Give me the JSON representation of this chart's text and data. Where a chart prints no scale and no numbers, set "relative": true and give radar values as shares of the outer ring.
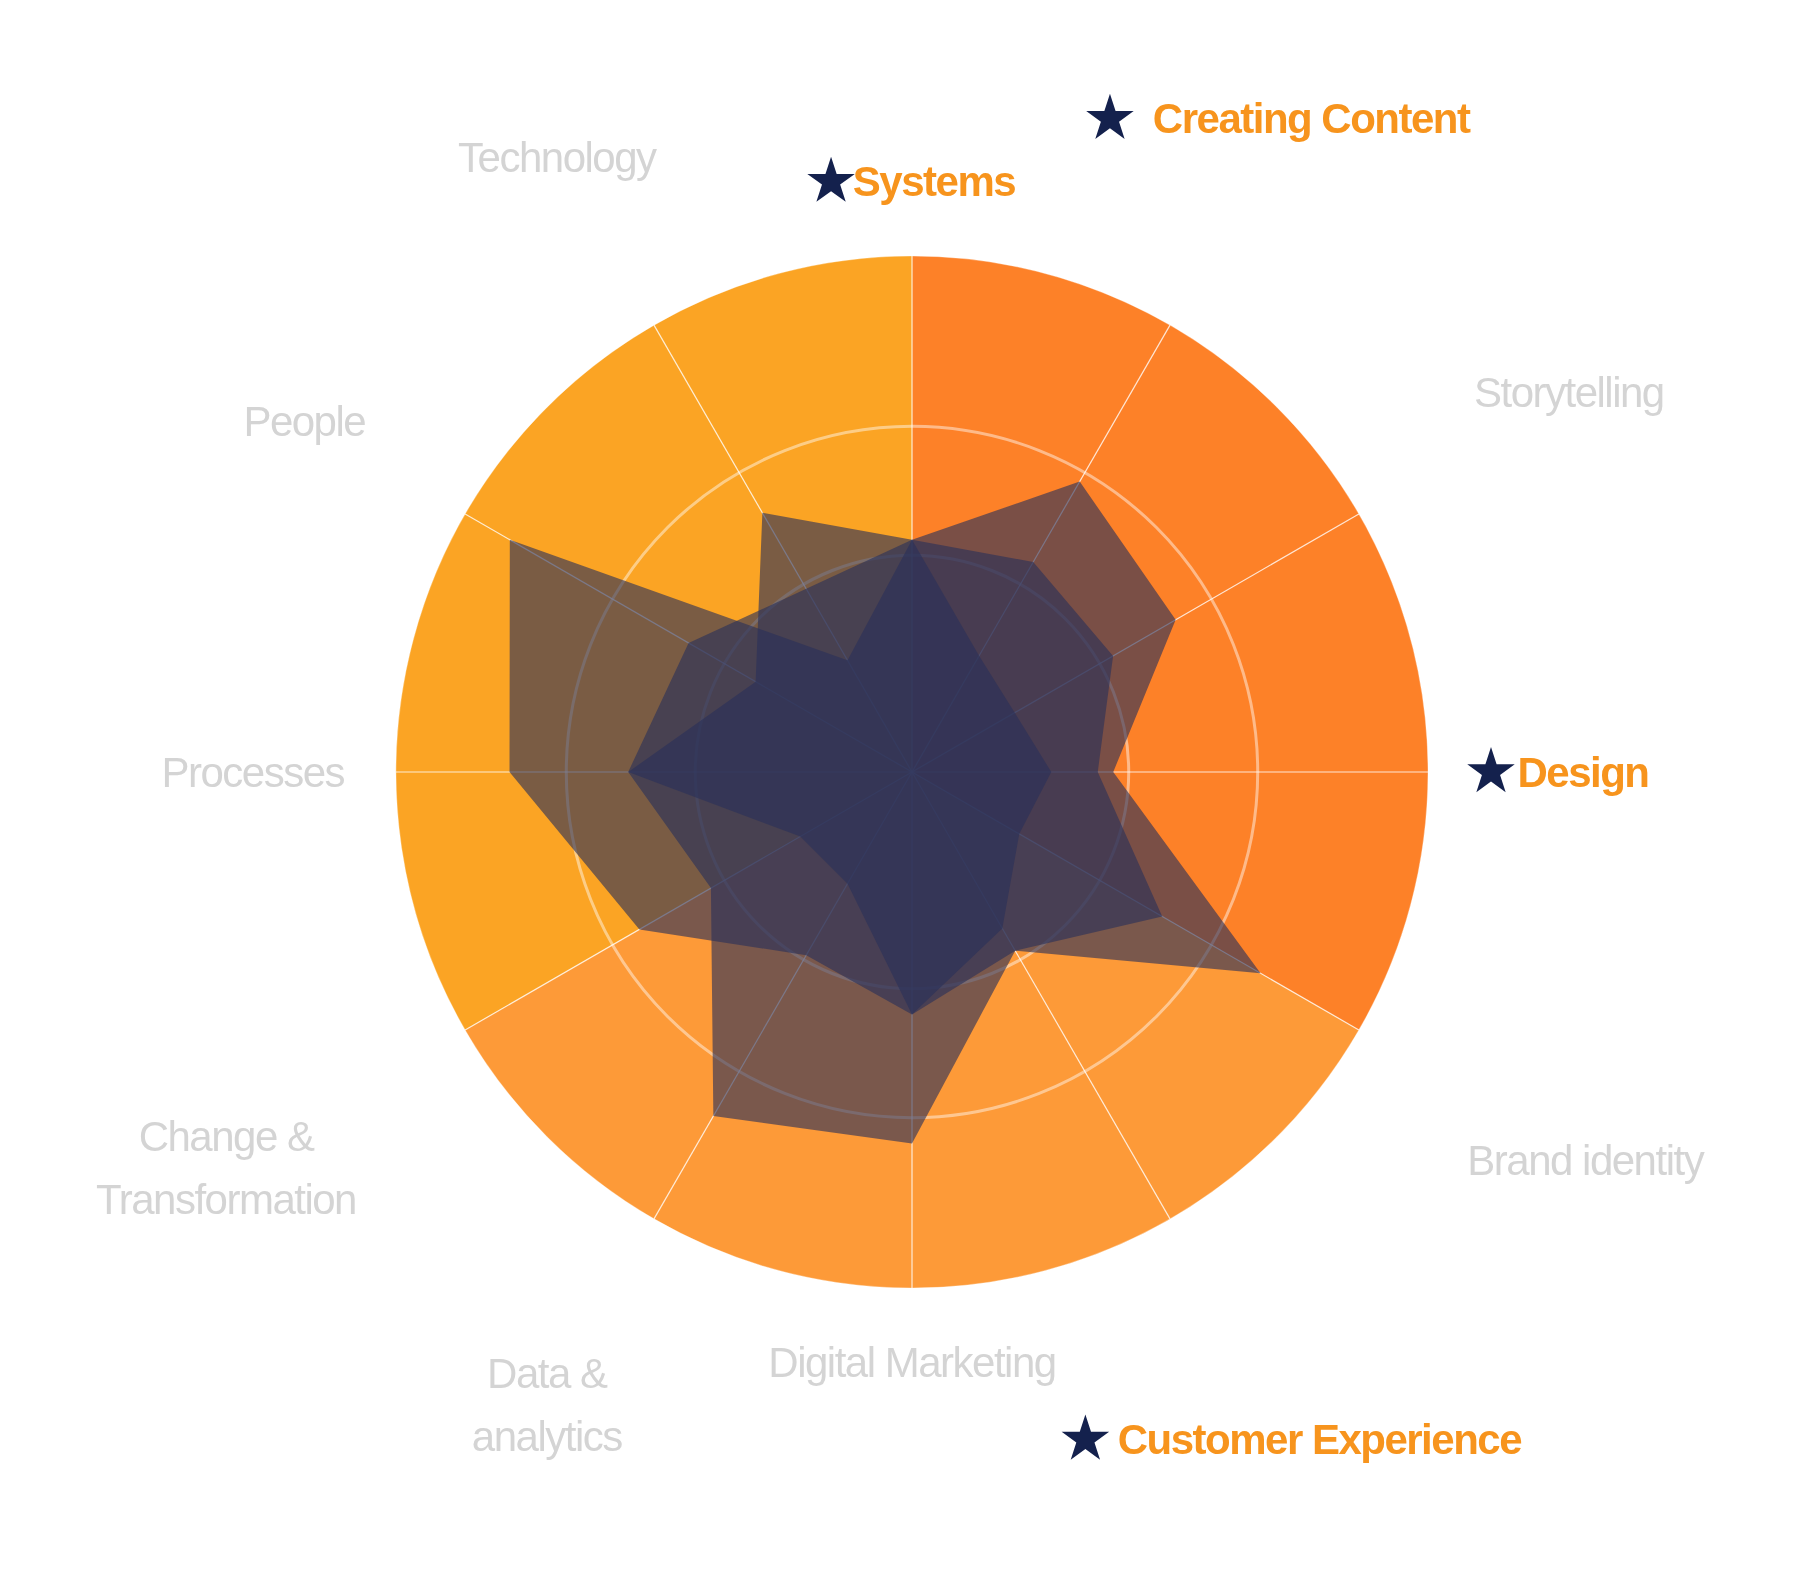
{
  "chart_data": {
    "type": "radar",
    "relative": true,
    "grid": true,
    "categories": [
      "Systems",
      "Creating Content",
      "Storytelling",
      "Design",
      "Brand identity",
      "Customer Experience",
      "Digital Marketing",
      "Data &\nanalytics",
      "Change &\nTransformation",
      "Processes",
      "People",
      "Technology"
    ],
    "colors": [
      "#f7941d",
      "#f7941d",
      "#d4d4d4",
      "#f7941d",
      "#d4d4d4",
      "#f7941d",
      "#d4d4d4",
      "#d4d4d4",
      "#d4d4d4",
      "#d4d4d4",
      "#d4d4d4",
      "#d4d4d4"
    ],
    "series": [
      {
        "color": "#2a3158",
        "values": [
          0.45,
          0.65,
          0.59,
          0.39,
          0.78,
          0.4,
          0.72,
          0.77,
          0.45,
          0.55,
          0.35,
          0.58
        ]
      },
      {
        "color": "#2a3158",
        "values": [
          0.45,
          0.47,
          0.45,
          0.36,
          0.56,
          0.4,
          0.47,
          0.41,
          0.61,
          0.78,
          0.9,
          0.25
        ]
      },
      {
        "color": "#2a3158",
        "values": [
          0.45,
          0.26,
          0.23,
          0.27,
          0.24,
          0.35,
          0.47,
          0.25,
          0.25,
          0.55,
          0.5,
          0.41
        ]
      }
    ]
  }
}
